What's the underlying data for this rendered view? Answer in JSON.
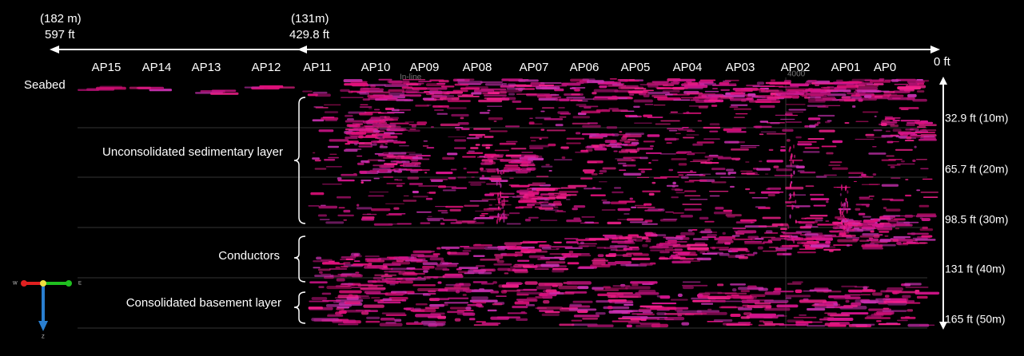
{
  "header": {
    "left_depth_m": "(182 m)",
    "left_depth_ft": "597 ft",
    "mid_depth_m": "(131m)",
    "mid_depth_ft": "429.8 ft",
    "zero": "0 ft"
  },
  "stations": [
    "AP15",
    "AP14",
    "AP13",
    "AP12",
    "AP11",
    "AP10",
    "AP09",
    "AP08",
    "AP07",
    "AP06",
    "AP05",
    "AP04",
    "AP03",
    "AP02",
    "AP01",
    "AP0"
  ],
  "overlay": {
    "inline": "In-line",
    "trace": "4000"
  },
  "layers": {
    "seabed": "Seabed",
    "unconsolidated": "Unconsolidated sedimentary layer",
    "conductors": "Conductors",
    "basement": "Consolidated basement layer"
  },
  "depths": [
    "32.9 ft (10m)",
    "65.7 ft (20m)",
    "98.5 ft (30m)",
    "131 ft (40m)",
    "165 ft (50m)"
  ],
  "compass": {
    "west": "W",
    "east": "E",
    "down": "Z"
  }
}
